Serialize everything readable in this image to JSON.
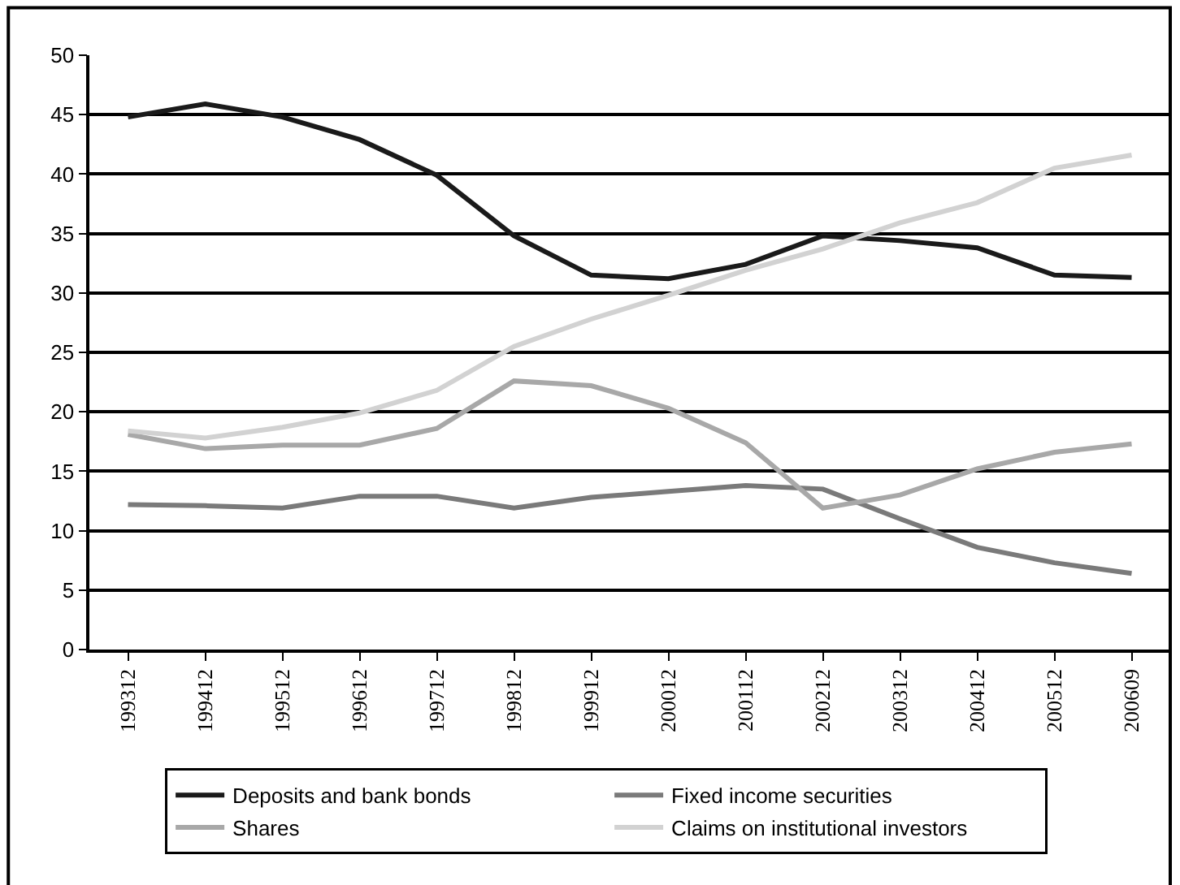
{
  "chart_data": {
    "type": "line",
    "categories": [
      "199312",
      "199412",
      "199512",
      "199612",
      "199712",
      "199812",
      "199912",
      "200012",
      "200112",
      "200212",
      "200312",
      "200412",
      "200512",
      "200609"
    ],
    "series": [
      {
        "name": "Deposits and bank bonds",
        "color": "#1a1a1a",
        "values": [
          44.8,
          45.9,
          44.8,
          42.9,
          39.9,
          34.8,
          31.5,
          31.2,
          32.4,
          34.8,
          34.4,
          33.8,
          31.5,
          31.3
        ]
      },
      {
        "name": "Fixed income securities",
        "color": "#7a7a7a",
        "values": [
          12.2,
          12.1,
          11.9,
          12.9,
          12.9,
          11.9,
          12.8,
          13.3,
          13.8,
          13.5,
          11.0,
          8.6,
          7.3,
          6.4
        ]
      },
      {
        "name": "Shares",
        "color": "#a8a8a8",
        "values": [
          18.1,
          16.9,
          17.2,
          17.2,
          18.6,
          22.6,
          22.2,
          20.3,
          17.4,
          11.9,
          13.0,
          15.2,
          16.6,
          17.3
        ]
      },
      {
        "name": "Claims on institutional investors",
        "color": "#d2d2d2",
        "values": [
          18.4,
          17.8,
          18.7,
          19.9,
          21.8,
          25.5,
          27.8,
          29.8,
          31.9,
          33.7,
          35.9,
          37.6,
          40.5,
          41.6
        ]
      }
    ],
    "ylim": [
      0,
      50
    ],
    "yticks": [
      0,
      5,
      10,
      15,
      20,
      25,
      30,
      35,
      40,
      45,
      50
    ],
    "grid": "y",
    "legend": "bottom",
    "marker": "none",
    "line_style": "solid"
  }
}
